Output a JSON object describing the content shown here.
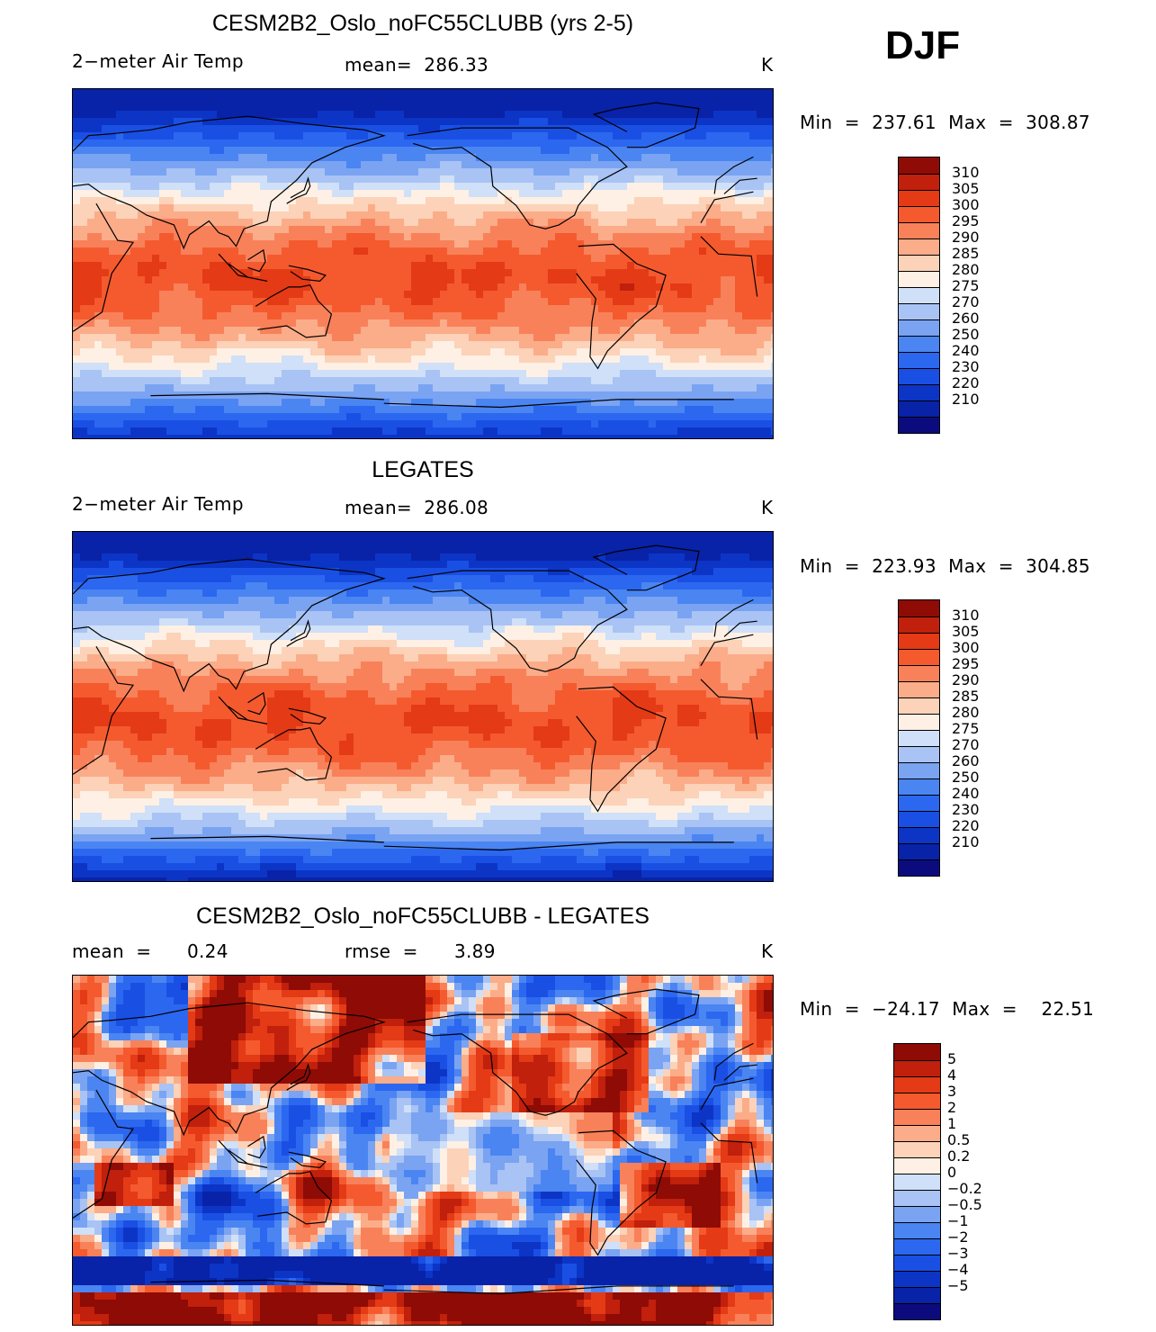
{
  "season": "DJF",
  "colors": {
    "temp_scale": [
      "#0b0b7e",
      "#0822a8",
      "#0c35c6",
      "#1a4fe4",
      "#2c67f0",
      "#4a85f2",
      "#7aa3f2",
      "#a8c3f4",
      "#cfe0f8",
      "#fef0e4",
      "#fcd2b8",
      "#fbac89",
      "#f8815a",
      "#f45a2e",
      "#e43a16",
      "#c0200c",
      "#8e0b06"
    ],
    "diff_scale": [
      "#0b0b7e",
      "#0822a8",
      "#0c35c6",
      "#1a4fe4",
      "#2c67f0",
      "#4a85f2",
      "#7aa3f2",
      "#a8c3f4",
      "#cfe0f8",
      "#fef0e4",
      "#fcd2b8",
      "#fbac89",
      "#f8815a",
      "#f45a2e",
      "#e43a16",
      "#c0200c",
      "#8e0b06"
    ]
  },
  "chart_data": [
    {
      "type": "heatmap",
      "title": "CESM2B2_Oslo_noFC55CLUBB (yrs 2-5)",
      "variable": "2−meter Air Temp",
      "mean_text": "mean=  286.33",
      "units": "K",
      "min_max_text": "Min  =  237.61  Max  =  308.87",
      "levels": [
        "310",
        "305",
        "300",
        "295",
        "290",
        "285",
        "280",
        "275",
        "270",
        "260",
        "250",
        "240",
        "230",
        "220",
        "210"
      ],
      "min": 237.61,
      "max": 308.87,
      "mean": 286.33
    },
    {
      "type": "heatmap",
      "title": "LEGATES",
      "variable": "2−meter Air Temp",
      "mean_text": "mean=  286.08",
      "units": "K",
      "min_max_text": "Min  =  223.93  Max  =  304.85",
      "levels": [
        "310",
        "305",
        "300",
        "295",
        "290",
        "285",
        "280",
        "275",
        "270",
        "260",
        "250",
        "240",
        "230",
        "220",
        "210"
      ],
      "min": 223.93,
      "max": 304.85,
      "mean": 286.08
    },
    {
      "type": "heatmap",
      "title": "CESM2B2_Oslo_noFC55CLUBB - LEGATES",
      "mean_label": "mean  =",
      "mean_value": "0.24",
      "rmse_label": "rmse  =",
      "rmse_value": "3.89",
      "units": "K",
      "min_max_text": "Min  =  −24.17  Max  =    22.51",
      "levels": [
        "5",
        "4",
        "3",
        "2",
        "1",
        "0.5",
        "0.2",
        "0",
        "−0.2",
        "−0.5",
        "−1",
        "−2",
        "−3",
        "−4",
        "−5"
      ],
      "min": -24.17,
      "max": 22.51,
      "mean": 0.24,
      "rmse": 3.89
    }
  ]
}
